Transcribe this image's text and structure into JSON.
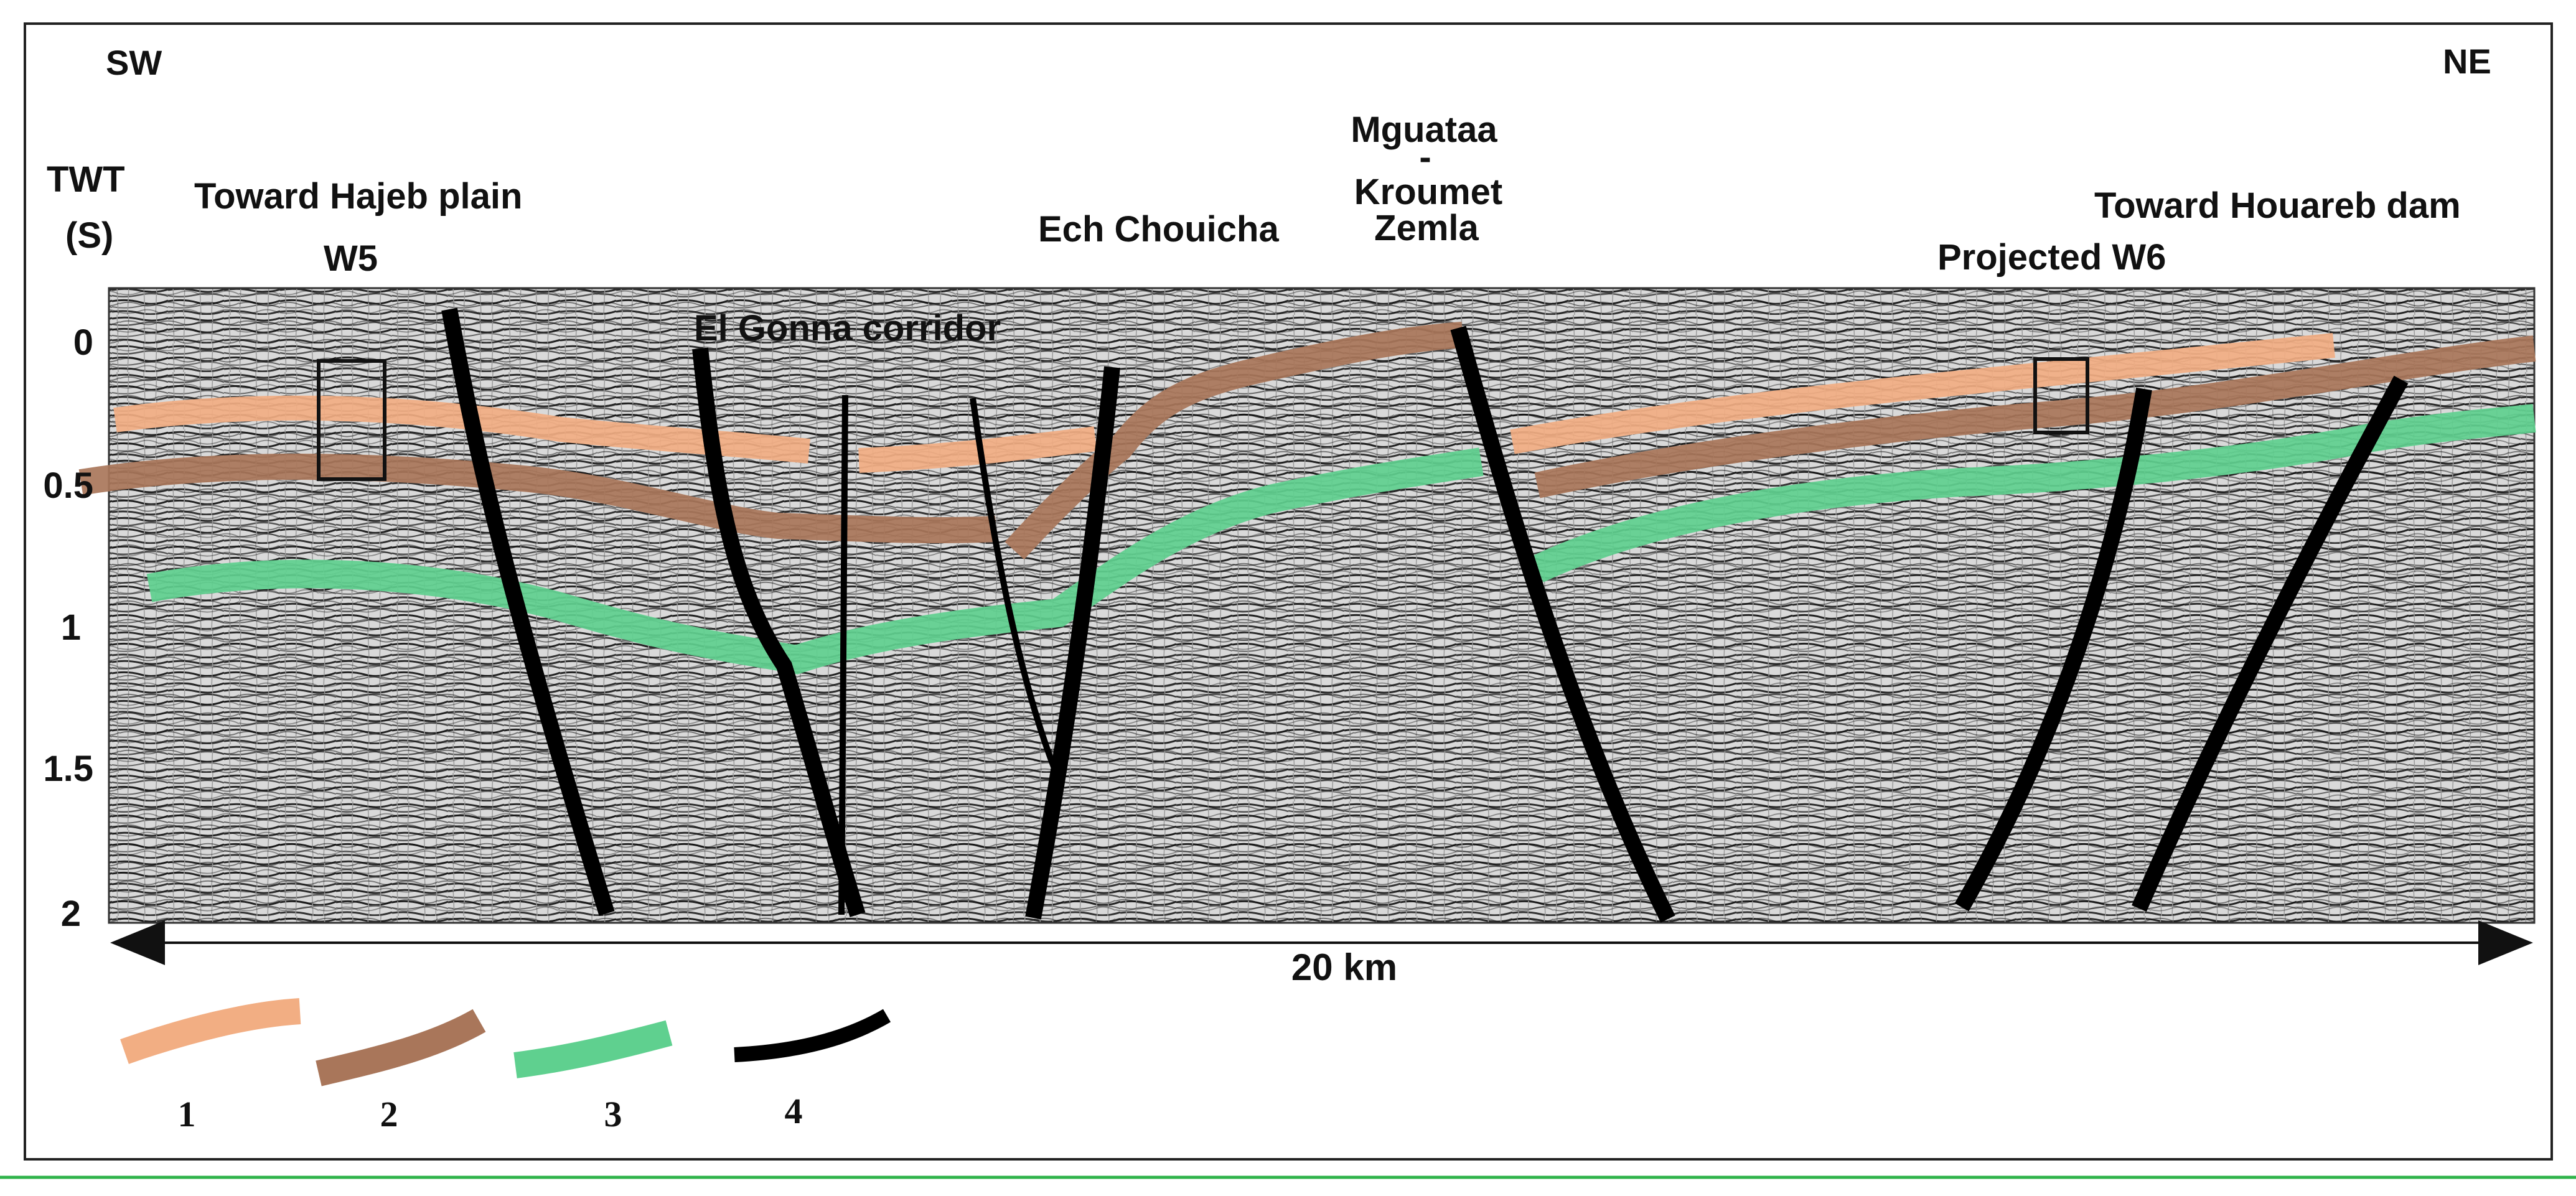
{
  "labels": {
    "sw": "SW",
    "ne": "NE",
    "twt_line1": "TWT",
    "twt_line2": "(S)",
    "toward_hajeb": "Toward Hajeb plain",
    "w5": "W5",
    "el_gonna": "El Gonna corridor",
    "ech_chouicha": "Ech Chouicha",
    "mguataa_1": "Mguataa",
    "mguataa_2": "-",
    "mguataa_3": "Kroumet",
    "mguataa_4": "Zemla",
    "toward_houareb": "Toward Houareb dam",
    "projected_w6": "Projected W6"
  },
  "axis": {
    "ticks": [
      "0",
      "0.5",
      "1",
      "1.5",
      "2"
    ]
  },
  "scale_bar": {
    "label": "20 km"
  },
  "legend": [
    {
      "num": "1",
      "color": "#f2ae83"
    },
    {
      "num": "2",
      "color": "#a9765a"
    },
    {
      "num": "3",
      "color": "#5fd08f"
    },
    {
      "num": "4",
      "color": "#000000"
    }
  ]
}
